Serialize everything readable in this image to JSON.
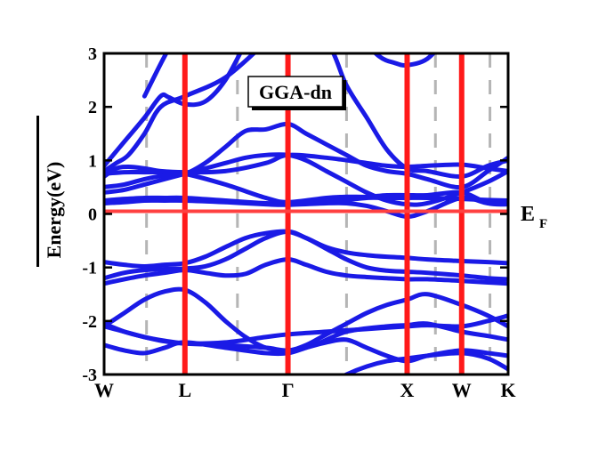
{
  "chart_data": {
    "type": "line",
    "title": "",
    "annotation": "GGA-dn",
    "ylabel": "Energy(eV)",
    "xlabel": "",
    "ylim": [
      -3,
      3
    ],
    "yticks": [
      -3,
      -2,
      -1,
      0,
      1,
      2,
      3
    ],
    "ytick_labels": [
      "-3",
      "-2",
      "-1",
      "0",
      "1",
      "2",
      "3"
    ],
    "grid": false,
    "fermi_level": {
      "energy": 0.05,
      "label": "E",
      "sub": "F",
      "color": "#ff4040"
    },
    "band_color": "#1a1ae6",
    "high_symmetry_points": [
      {
        "label": "W",
        "x": 0.0
      },
      {
        "label": "L",
        "x": 0.2
      },
      {
        "label": "Γ",
        "x": 0.455
      },
      {
        "label": "X",
        "x": 0.75
      },
      {
        "label": "W",
        "x": 0.885
      },
      {
        "label": "K",
        "x": 1.0
      }
    ],
    "red_lines_x": [
      0.2,
      0.455,
      0.75,
      0.885
    ],
    "dashed_lines_x": [
      0.105,
      0.33,
      0.6,
      0.82,
      0.955
    ],
    "series": [
      {
        "x": [
          0,
          0.05,
          0.1,
          0.15,
          0.2,
          0.3,
          0.4,
          0.455,
          0.55,
          0.65,
          0.75,
          0.8,
          0.885,
          0.95,
          1.0
        ],
        "y": [
          -2.05,
          -2.2,
          -2.3,
          -2.38,
          -2.42,
          -2.4,
          -2.3,
          -2.25,
          -2.2,
          -2.15,
          -2.1,
          -2.08,
          -2.1,
          -2.0,
          -1.9
        ]
      },
      {
        "x": [
          0,
          0.05,
          0.1,
          0.15,
          0.2,
          0.3,
          0.4,
          0.455,
          0.52,
          0.6,
          0.7,
          0.75,
          0.8,
          0.885,
          0.95,
          1.0
        ],
        "y": [
          -2.1,
          -2.2,
          -2.3,
          -2.37,
          -2.42,
          -2.45,
          -2.5,
          -2.55,
          -2.45,
          -2.2,
          -2.1,
          -2.08,
          -2.05,
          -2.2,
          -2.28,
          -2.35
        ]
      },
      {
        "x": [
          0,
          0.05,
          0.1,
          0.15,
          0.2,
          0.3,
          0.4,
          0.455,
          0.5,
          0.55,
          0.6,
          0.65,
          0.7,
          0.75,
          0.8,
          0.885,
          0.95,
          1.0
        ],
        "y": [
          -2.45,
          -2.55,
          -2.6,
          -2.5,
          -2.4,
          -2.5,
          -2.6,
          -2.6,
          -2.5,
          -2.4,
          -2.35,
          -2.5,
          -2.65,
          -2.75,
          -2.65,
          -2.55,
          -2.6,
          -2.65
        ]
      },
      {
        "x": [
          0,
          0.05,
          0.1,
          0.15,
          0.2,
          0.25,
          0.3,
          0.35,
          0.4,
          0.455,
          0.5,
          0.55,
          0.6,
          0.65,
          0.7,
          0.75,
          0.8,
          0.885,
          0.95,
          1.0
        ],
        "y": [
          -2.1,
          -1.85,
          -1.6,
          -1.45,
          -1.42,
          -1.65,
          -2.0,
          -2.3,
          -2.5,
          -2.55,
          -2.45,
          -2.25,
          -2.05,
          -1.85,
          -1.7,
          -1.6,
          -1.5,
          -1.7,
          -1.9,
          -2.1
        ]
      },
      {
        "x": [
          0,
          0.05,
          0.1,
          0.15,
          0.2,
          0.25,
          0.3,
          0.35,
          0.4,
          0.455,
          0.5,
          0.55,
          0.6,
          0.65,
          0.7,
          0.75,
          0.8,
          0.885,
          0.95,
          1.0
        ],
        "y": [
          -1.3,
          -1.22,
          -1.15,
          -1.1,
          -1.05,
          -1.1,
          -1.15,
          -1.12,
          -0.95,
          -0.85,
          -0.95,
          -1.08,
          -1.15,
          -1.18,
          -1.2,
          -1.22,
          -1.22,
          -1.25,
          -1.28,
          -1.3
        ]
      },
      {
        "x": [
          0,
          0.05,
          0.1,
          0.15,
          0.2,
          0.25,
          0.3,
          0.35,
          0.4,
          0.455,
          0.5,
          0.55,
          0.6,
          0.65,
          0.7,
          0.75,
          0.8,
          0.885,
          0.95,
          1.0
        ],
        "y": [
          -0.9,
          -0.95,
          -0.98,
          -0.95,
          -0.92,
          -0.8,
          -0.62,
          -0.45,
          -0.36,
          -0.33,
          -0.45,
          -0.62,
          -0.72,
          -0.77,
          -0.8,
          -0.82,
          -0.85,
          -0.88,
          -0.9,
          -0.92
        ]
      },
      {
        "x": [
          0,
          0.05,
          0.1,
          0.15,
          0.2,
          0.25,
          0.3,
          0.35,
          0.4,
          0.455,
          0.5,
          0.55,
          0.6,
          0.65,
          0.7,
          0.75,
          0.8,
          0.885,
          0.95,
          1.0
        ],
        "y": [
          -1.2,
          -1.1,
          -1.05,
          -1.03,
          -1.02,
          -0.98,
          -0.85,
          -0.65,
          -0.45,
          -0.33,
          -0.45,
          -0.65,
          -0.85,
          -1.0,
          -1.06,
          -1.08,
          -1.1,
          -1.15,
          -1.2,
          -1.22
        ]
      },
      {
        "x": [
          0,
          0.05,
          0.1,
          0.15,
          0.2,
          0.3,
          0.4,
          0.455,
          0.55,
          0.6,
          0.65,
          0.7,
          0.75,
          0.8,
          0.885,
          0.95,
          1.0
        ],
        "y": [
          0.25,
          0.28,
          0.3,
          0.3,
          0.3,
          0.25,
          0.2,
          0.2,
          0.22,
          0.26,
          0.3,
          0.3,
          0.3,
          0.3,
          0.28,
          0.26,
          0.25
        ]
      },
      {
        "x": [
          0,
          0.05,
          0.1,
          0.15,
          0.2,
          0.3,
          0.4,
          0.455,
          0.55,
          0.6,
          0.65,
          0.7,
          0.75,
          0.8,
          0.885,
          0.95,
          1.0
        ],
        "y": [
          0.2,
          0.22,
          0.25,
          0.25,
          0.25,
          0.22,
          0.18,
          0.17,
          0.2,
          0.2,
          0.15,
          0.05,
          -0.05,
          0.05,
          0.3,
          0.2,
          0.2
        ]
      },
      {
        "x": [
          0,
          0.05,
          0.1,
          0.15,
          0.2,
          0.25,
          0.3,
          0.35,
          0.4,
          0.455,
          0.5,
          0.55,
          0.6,
          0.65,
          0.7,
          0.75,
          0.8,
          0.885,
          0.95,
          1.0
        ],
        "y": [
          0.4,
          0.45,
          0.55,
          0.65,
          0.75,
          0.85,
          0.95,
          1.05,
          1.1,
          1.1,
          1.0,
          0.8,
          0.6,
          0.4,
          0.25,
          0.18,
          0.2,
          0.4,
          0.6,
          0.8
        ]
      },
      {
        "x": [
          0,
          0.05,
          0.1,
          0.15,
          0.2,
          0.3,
          0.4,
          0.455,
          0.55,
          0.6,
          0.65,
          0.7,
          0.75,
          0.8,
          0.885,
          0.95,
          1.0
        ],
        "y": [
          0.75,
          0.78,
          0.78,
          0.78,
          0.75,
          0.55,
          0.3,
          0.22,
          0.3,
          0.32,
          0.32,
          0.35,
          0.35,
          0.35,
          0.4,
          0.2,
          0.18
        ]
      },
      {
        "x": [
          0,
          0.05,
          0.1,
          0.15,
          0.2,
          0.25,
          0.3,
          0.35,
          0.4,
          0.455,
          0.5,
          0.55,
          0.6,
          0.65,
          0.7,
          0.75,
          0.8,
          0.885,
          0.95,
          1.0
        ],
        "y": [
          0.5,
          0.55,
          0.65,
          0.72,
          0.75,
          0.95,
          1.25,
          1.55,
          1.58,
          1.68,
          1.5,
          1.3,
          1.1,
          0.9,
          0.8,
          0.75,
          0.65,
          0.5,
          0.8,
          1.05
        ]
      },
      {
        "x": [
          0,
          0.03,
          0.06,
          0.1,
          0.14,
          0.2,
          0.3,
          0.4,
          0.455,
          0.55,
          0.65,
          0.7,
          0.75,
          0.8,
          0.885,
          0.95,
          1.0
        ],
        "y": [
          0.7,
          0.85,
          0.88,
          0.85,
          0.8,
          0.78,
          0.8,
          0.95,
          1.1,
          1.05,
          0.95,
          0.9,
          0.88,
          0.9,
          0.92,
          0.85,
          0.8
        ]
      },
      {
        "x": [
          0,
          0.03,
          0.06,
          0.1,
          0.14,
          0.2,
          0.3,
          0.4,
          0.455,
          0.55,
          0.6,
          0.65,
          0.7,
          0.75,
          0.8,
          0.885,
          0.95,
          1.0
        ],
        "y": [
          0.8,
          0.95,
          1.1,
          1.5,
          2.0,
          2.2,
          2.55,
          3.2,
          3.5,
          3.2,
          2.4,
          1.8,
          1.2,
          0.85,
          0.8,
          0.7,
          0.9,
          1.0
        ]
      },
      {
        "x": [
          0,
          0.05,
          0.1,
          0.14,
          0.16,
          0.2,
          0.25,
          0.3,
          0.35
        ],
        "y": [
          0.9,
          1.35,
          1.8,
          2.2,
          2.18,
          2.05,
          2.1,
          2.5,
          3.2
        ]
      },
      {
        "x": [
          0.1,
          0.15,
          0.2
        ],
        "y": [
          2.2,
          2.95,
          3.6
        ]
      },
      {
        "x": [
          0.62,
          0.68,
          0.72,
          0.75,
          0.8,
          0.85
        ],
        "y": [
          3.4,
          2.95,
          2.82,
          2.78,
          2.9,
          3.3
        ]
      },
      {
        "x": [
          0.455,
          0.55,
          0.6,
          0.65,
          0.7,
          0.75,
          0.8,
          0.885,
          0.95,
          1.0
        ],
        "y": [
          -3.4,
          -3.2,
          -3.0,
          -2.85,
          -2.75,
          -2.7,
          -2.65,
          -2.6,
          -2.7,
          -2.9
        ]
      }
    ]
  }
}
